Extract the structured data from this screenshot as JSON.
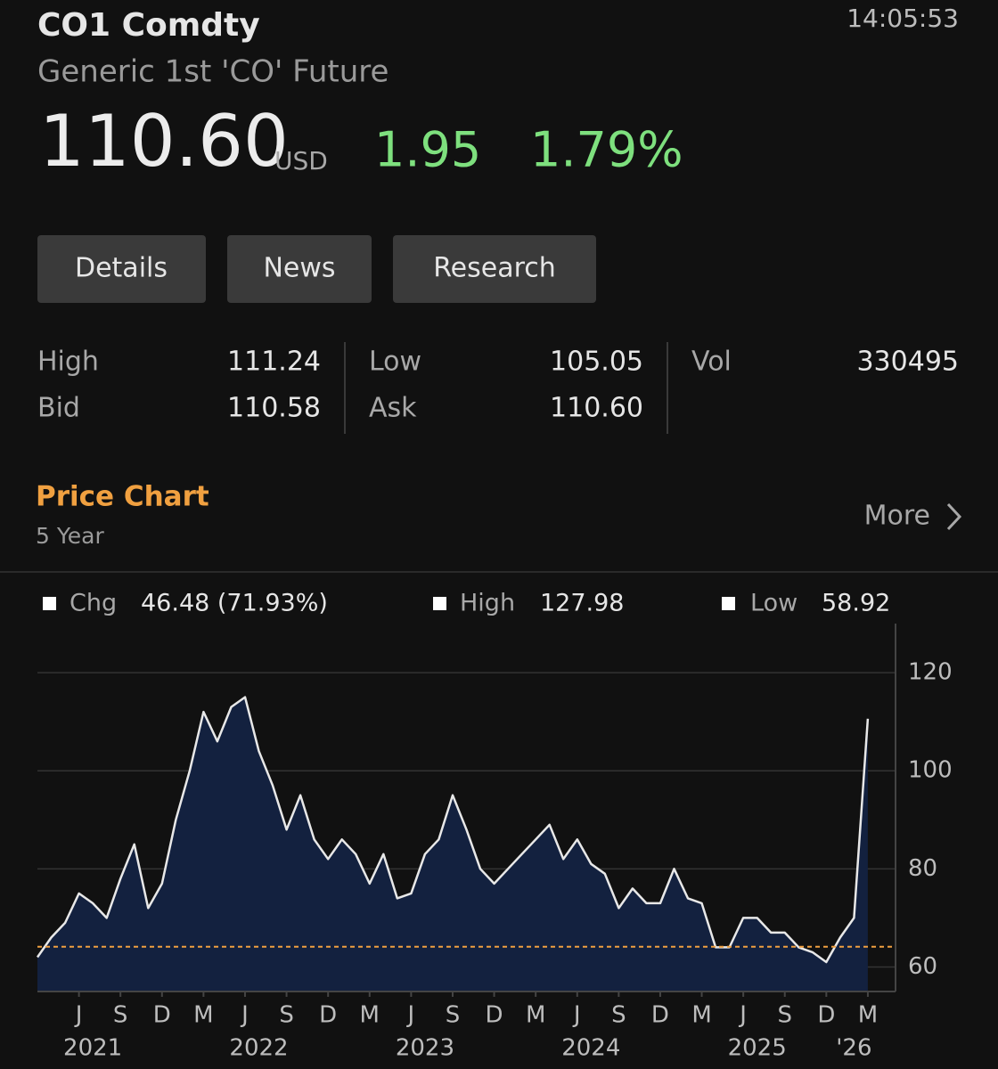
{
  "header": {
    "symbol": "CO1 Comdty",
    "name": "Generic 1st 'CO' Future",
    "time": "14:05:53",
    "price": "110.60",
    "currency": "USD",
    "change": "1.95",
    "change_pct": "1.79%"
  },
  "buttons": [
    "Details",
    "News",
    "Research"
  ],
  "stats": [
    {
      "label": "High",
      "value": "111.24"
    },
    {
      "label": "Low",
      "value": "105.05"
    },
    {
      "label": "Vol",
      "value": "330495"
    },
    {
      "label": "Bid",
      "value": "110.58"
    },
    {
      "label": "Ask",
      "value": "110.60"
    }
  ],
  "section": {
    "title": "Price Chart",
    "period": "5 Year",
    "more": "More"
  },
  "chart_data": {
    "type": "area",
    "legend": [
      {
        "name": "Chg",
        "value": "46.48 (71.93%)"
      },
      {
        "name": "High",
        "value": "127.98"
      },
      {
        "name": "Low",
        "value": "58.92"
      }
    ],
    "x": [
      "2021-03",
      "2021-04",
      "2021-05",
      "2021-06",
      "2021-07",
      "2021-08",
      "2021-09",
      "2021-10",
      "2021-11",
      "2021-12",
      "2022-01",
      "2022-02",
      "2022-03",
      "2022-04",
      "2022-05",
      "2022-06",
      "2022-07",
      "2022-08",
      "2022-09",
      "2022-10",
      "2022-11",
      "2022-12",
      "2023-01",
      "2023-02",
      "2023-03",
      "2023-04",
      "2023-05",
      "2023-06",
      "2023-07",
      "2023-08",
      "2023-09",
      "2023-10",
      "2023-11",
      "2023-12",
      "2024-01",
      "2024-02",
      "2024-03",
      "2024-04",
      "2024-05",
      "2024-06",
      "2024-07",
      "2024-08",
      "2024-09",
      "2024-10",
      "2024-11",
      "2024-12",
      "2025-01",
      "2025-02",
      "2025-03",
      "2025-04",
      "2025-05",
      "2025-06",
      "2025-07",
      "2025-08",
      "2025-09",
      "2025-10",
      "2025-11",
      "2025-12",
      "2026-01",
      "2026-02",
      "2026-03"
    ],
    "values": [
      62,
      66,
      69,
      75,
      73,
      70,
      78,
      85,
      72,
      77,
      90,
      100,
      112,
      106,
      113,
      115,
      104,
      97,
      88,
      95,
      86,
      82,
      86,
      83,
      77,
      83,
      74,
      75,
      83,
      86,
      95,
      88,
      80,
      77,
      80,
      83,
      86,
      89,
      82,
      86,
      81,
      79,
      72,
      76,
      73,
      73,
      80,
      74,
      73,
      64,
      64,
      70,
      70,
      67,
      67,
      64,
      63,
      61,
      66,
      70,
      110.6
    ],
    "color": "#e8e8e8",
    "fill": "#13213f",
    "baseline": 64.12,
    "baseline_color": "#f0a040",
    "xlim": [
      "2021-03",
      "2026-05"
    ],
    "xticks": [
      {
        "value": "2021-06",
        "label": "J"
      },
      {
        "value": "2021-09",
        "label": "S"
      },
      {
        "value": "2021-12",
        "label": "D"
      },
      {
        "value": "2022-03",
        "label": "M"
      },
      {
        "value": "2022-06",
        "label": "J"
      },
      {
        "value": "2022-09",
        "label": "S"
      },
      {
        "value": "2022-12",
        "label": "D"
      },
      {
        "value": "2023-03",
        "label": "M"
      },
      {
        "value": "2023-06",
        "label": "J"
      },
      {
        "value": "2023-09",
        "label": "S"
      },
      {
        "value": "2023-12",
        "label": "D"
      },
      {
        "value": "2024-03",
        "label": "M"
      },
      {
        "value": "2024-06",
        "label": "J"
      },
      {
        "value": "2024-09",
        "label": "S"
      },
      {
        "value": "2024-12",
        "label": "D"
      },
      {
        "value": "2025-03",
        "label": "M"
      },
      {
        "value": "2025-06",
        "label": "J"
      },
      {
        "value": "2025-09",
        "label": "S"
      },
      {
        "value": "2025-12",
        "label": "D"
      },
      {
        "value": "2026-03",
        "label": "M"
      }
    ],
    "year_ticks": [
      {
        "value": "2021-07",
        "label": "2021"
      },
      {
        "value": "2022-07",
        "label": "2022"
      },
      {
        "value": "2023-07",
        "label": "2023"
      },
      {
        "value": "2024-07",
        "label": "2024"
      },
      {
        "value": "2025-07",
        "label": "2025"
      },
      {
        "value": "2026-02",
        "label": "'26"
      }
    ],
    "ylim": [
      55,
      130
    ],
    "yticks": [
      60,
      80,
      100,
      120
    ],
    "grid": true
  }
}
